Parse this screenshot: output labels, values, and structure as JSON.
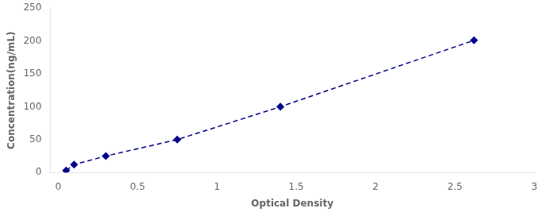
{
  "chart_data": {
    "type": "line",
    "x": [
      0.05,
      0.1,
      0.3,
      0.75,
      1.4,
      2.62
    ],
    "values": [
      3,
      12,
      25,
      50,
      100,
      201
    ],
    "color": "#00008B",
    "marker": "diamond",
    "line_style": "dashed",
    "xlabel": "Optical Density",
    "ylabel": "Concentration(ng/mL)",
    "xlim": [
      -0.05,
      3.0
    ],
    "ylim": [
      0,
      250
    ],
    "xticks": [
      0,
      0.5,
      1,
      1.5,
      2,
      2.5,
      3
    ],
    "yticks": [
      0,
      50,
      100,
      150,
      200,
      250
    ],
    "grid": false
  }
}
